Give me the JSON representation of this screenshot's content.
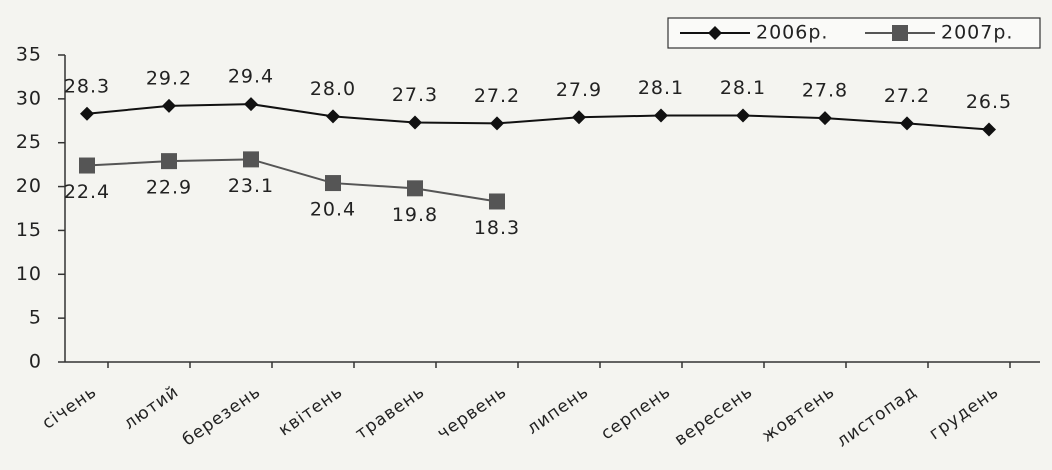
{
  "chart_data": {
    "type": "line",
    "categories": [
      "січень",
      "лютий",
      "березень",
      "квітень",
      "травень",
      "червень",
      "липень",
      "серпень",
      "вересень",
      "жовтень",
      "листопад",
      "грудень"
    ],
    "series": [
      {
        "name": "2006р.",
        "color": "#111111",
        "marker": "diamond",
        "values": [
          28.3,
          29.2,
          29.4,
          28.0,
          27.3,
          27.2,
          27.9,
          28.1,
          28.1,
          27.8,
          27.2,
          26.5
        ],
        "value_labels": [
          "28.3",
          "29.2",
          "29.4",
          "28.0",
          "27.3",
          "27.2",
          "27.9",
          "28.1",
          "28.1",
          "27.8",
          "27.2",
          "26.5"
        ]
      },
      {
        "name": "2007р.",
        "color": "#555555",
        "marker": "square",
        "values": [
          22.4,
          22.9,
          23.1,
          20.4,
          19.8,
          18.3,
          null,
          null,
          null,
          null,
          null,
          null
        ],
        "value_labels": [
          "22.4",
          "22.9",
          "23.1",
          "20.4",
          "19.8",
          "18.3",
          null,
          null,
          null,
          null,
          null,
          null
        ]
      }
    ],
    "ylim": [
      0,
      35
    ],
    "yticks": [
      0,
      5,
      10,
      15,
      20,
      25,
      30,
      35
    ],
    "grid": false,
    "legend": "top-right"
  }
}
